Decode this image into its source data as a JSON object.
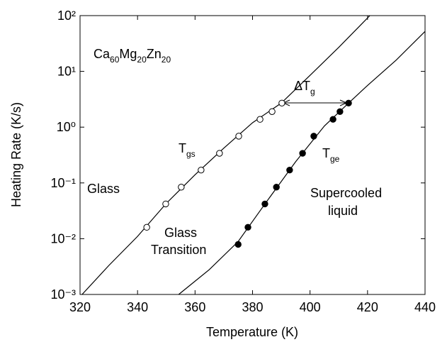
{
  "chart_data": {
    "type": "scatter",
    "x_label": "Temperature  (K)",
    "y_label": "Heating Rate (K/s)",
    "xlim": [
      320,
      440
    ],
    "xticks": [
      320,
      340,
      360,
      380,
      400,
      420,
      440
    ],
    "ylim": [
      0.001,
      100
    ],
    "yscale": "log",
    "yticks": [
      {
        "value": 0.001,
        "label": "10⁻³"
      },
      {
        "value": 0.01,
        "label": "10⁻²"
      },
      {
        "value": 0.1,
        "label": "10⁻¹"
      },
      {
        "value": 1,
        "label": "10⁰"
      },
      {
        "value": 10,
        "label": "10¹"
      },
      {
        "value": 100,
        "label": "10²"
      }
    ],
    "series": [
      {
        "style": "line",
        "color": "#000000",
        "x": [
          320.7,
          330,
          340,
          350,
          360,
          370,
          380,
          390,
          400,
          410,
          420.8
        ],
        "values": [
          0.001,
          0.0033,
          0.011,
          0.043,
          0.14,
          0.42,
          1.2,
          2.7,
          8.5,
          27,
          100
        ]
      },
      {
        "style": "line",
        "color": "#000000",
        "x": [
          354.3,
          365,
          375,
          385,
          395,
          405,
          413.4,
          420,
          430,
          440
        ],
        "values": [
          0.001,
          0.0028,
          0.0089,
          0.047,
          0.24,
          1.05,
          2.7,
          5.6,
          16,
          52
        ]
      },
      {
        "style": "open",
        "color": "#000000",
        "x": [
          343.2,
          349.8,
          355.2,
          362.1,
          368.5,
          375.2,
          382.6,
          386.8,
          390.2
        ],
        "values": [
          0.016,
          0.042,
          0.084,
          0.17,
          0.34,
          0.69,
          1.38,
          1.9,
          2.7
        ]
      },
      {
        "style": "filled",
        "color": "#000000",
        "x": [
          375.0,
          378.4,
          384.3,
          388.3,
          392.9,
          397.4,
          401.3,
          408.0,
          410.4,
          413.4
        ],
        "values": [
          0.0079,
          0.016,
          0.042,
          0.084,
          0.17,
          0.34,
          0.69,
          1.38,
          1.9,
          2.7
        ]
      }
    ],
    "annotations": [
      {
        "text": [
          "Ca",
          "Mg",
          "Zn"
        ],
        "sub": [
          "60",
          "20",
          "20"
        ]
      },
      {
        "text": [
          "T"
        ],
        "sub": [
          "gs"
        ]
      },
      {
        "text": [
          "T"
        ],
        "sub": [
          "ge"
        ]
      },
      {
        "text": [
          "ΔT"
        ],
        "sub": [
          "g"
        ]
      },
      {
        "text": [
          "Glass"
        ]
      },
      {
        "text": [
          "Glass"
        ]
      },
      {
        "text": [
          "Transition"
        ]
      },
      {
        "text": [
          "Supercooled"
        ]
      },
      {
        "text": [
          "liquid"
        ]
      }
    ]
  }
}
